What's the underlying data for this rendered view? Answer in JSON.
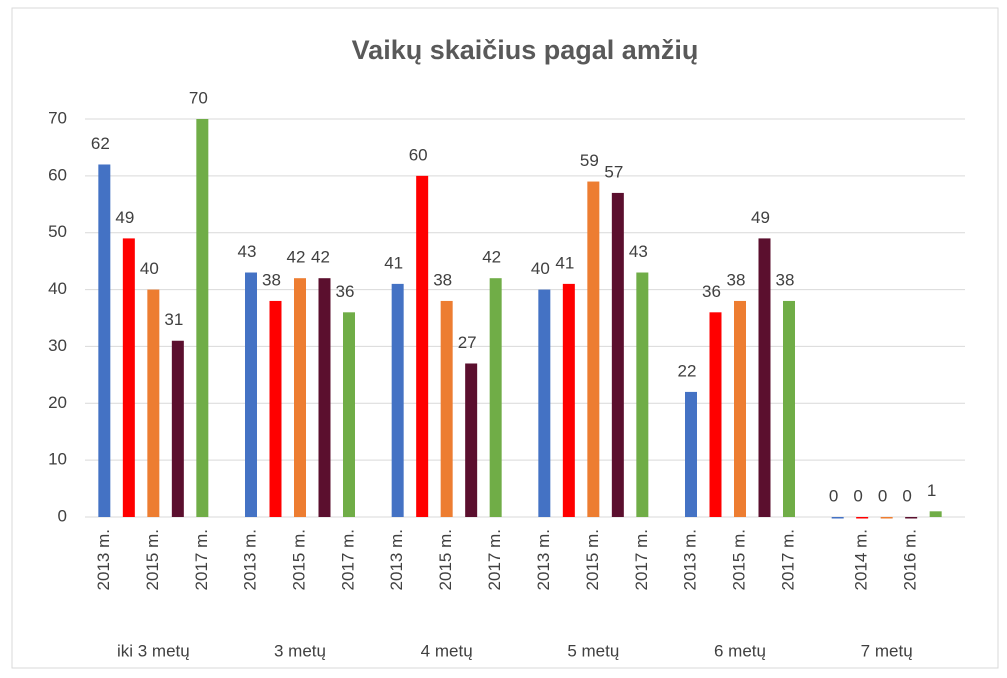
{
  "chart_data": {
    "type": "bar",
    "title": "Vaikų skaičius pagal amžių",
    "categories": [
      "iki 3 metų",
      "3 metų",
      "4 metų",
      "5 metų",
      "6 metų",
      "7 metų"
    ],
    "sub_categories": [
      [
        "2013 m.",
        null,
        "2015 m.",
        null,
        "2017 m."
      ],
      [
        "2013 m.",
        null,
        "2015 m.",
        null,
        "2017 m."
      ],
      [
        "2013 m.",
        null,
        "2015 m.",
        null,
        "2017 m."
      ],
      [
        "2013 m.",
        null,
        "2015 m.",
        null,
        "2017 m."
      ],
      [
        "2013 m.",
        null,
        "2015 m.",
        null,
        "2017 m."
      ],
      [
        null,
        "2014 m.",
        null,
        "2016 m.",
        null
      ]
    ],
    "series": [
      {
        "color": "#4472c4",
        "values": [
          62,
          43,
          41,
          40,
          22,
          0
        ]
      },
      {
        "color": "#ff0000",
        "values": [
          49,
          38,
          60,
          41,
          36,
          0
        ]
      },
      {
        "color": "#ed7d31",
        "values": [
          40,
          42,
          38,
          59,
          38,
          0
        ]
      },
      {
        "color": "#5b0f2e",
        "values": [
          31,
          42,
          27,
          57,
          49,
          0
        ]
      },
      {
        "color": "#70ad47",
        "values": [
          70,
          36,
          42,
          43,
          38,
          1
        ]
      }
    ],
    "ylim": [
      0,
      70
    ],
    "yticks": [
      0,
      10,
      20,
      30,
      40,
      50,
      60,
      70
    ],
    "grid": true
  }
}
